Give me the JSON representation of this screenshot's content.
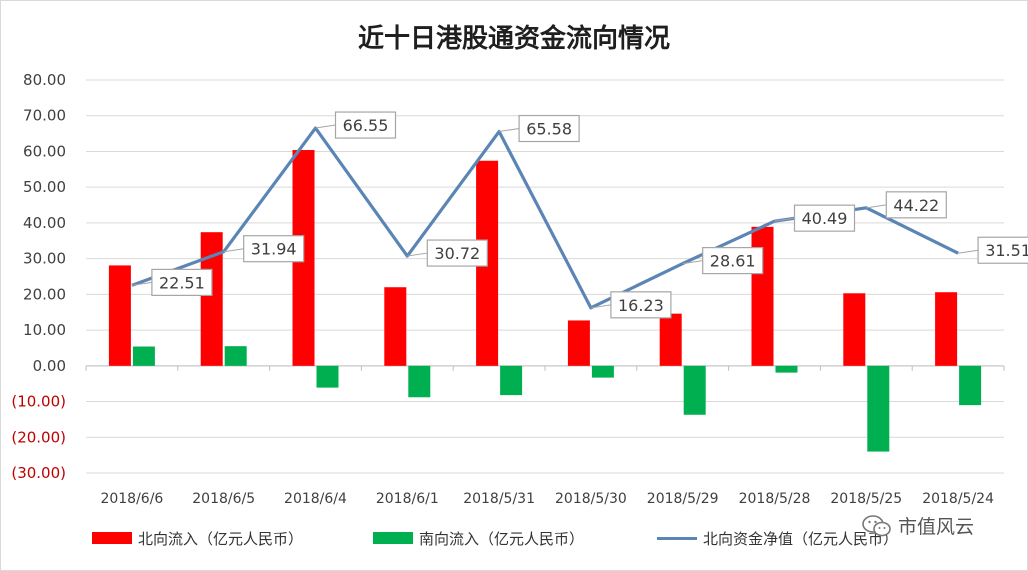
{
  "header": {
    "title": "近十日港股通资金流向情况"
  },
  "watermark": {
    "text": "市值风云",
    "icon": "wechat-icon"
  },
  "colors": {
    "north_bar": "#ff0000",
    "south_bar": "#00b050",
    "net_line": "#5b85b5",
    "negative_tick": "#c00000",
    "tick": "#404040",
    "grid": "#d9d9d9"
  },
  "chart_data": {
    "type": "bar",
    "title": "近十日港股通资金流向情况",
    "categories": [
      "2018/6/6",
      "2018/6/5",
      "2018/6/4",
      "2018/6/1",
      "2018/5/31",
      "2018/5/30",
      "2018/5/29",
      "2018/5/28",
      "2018/5/25",
      "2018/5/24"
    ],
    "series": [
      {
        "name": "北向流入（亿元人民币）",
        "kind": "bar",
        "values": [
          28.1,
          37.4,
          60.4,
          22.0,
          57.4,
          12.7,
          14.6,
          38.9,
          20.3,
          20.6
        ]
      },
      {
        "name": "南向流入（亿元人民币）",
        "kind": "bar",
        "values": [
          5.4,
          5.5,
          -6.1,
          -8.8,
          -8.2,
          -3.3,
          -13.7,
          -1.9,
          -24.0,
          -11.0
        ]
      },
      {
        "name": "北向资金净值（亿元人民币）",
        "kind": "line",
        "values": [
          22.51,
          31.94,
          66.55,
          30.72,
          65.58,
          16.23,
          28.61,
          40.49,
          44.22,
          31.51
        ]
      }
    ],
    "data_labels": [
      "22.51",
      "31.94",
      "66.55",
      "30.72",
      "65.58",
      "16.23",
      "28.61",
      "40.49",
      "44.22",
      "31.51"
    ],
    "y_ticks": [
      80,
      70,
      60,
      50,
      40,
      30,
      20,
      10,
      0,
      -10,
      -20,
      -30
    ],
    "y_tick_labels": [
      "80.00",
      "70.00",
      "60.00",
      "50.00",
      "40.00",
      "30.00",
      "20.00",
      "10.00",
      "0.00",
      "(10.00)",
      "(20.00)",
      "(30.00)"
    ],
    "ylim": [
      -30,
      80
    ],
    "xlabel": "",
    "ylabel": "",
    "grid": true,
    "legend_position": "bottom"
  },
  "legend": {
    "north": "北向流入（亿元人民币）",
    "south": "南向流入（亿元人民币）",
    "net": "北向资金净值（亿元人民币）"
  }
}
